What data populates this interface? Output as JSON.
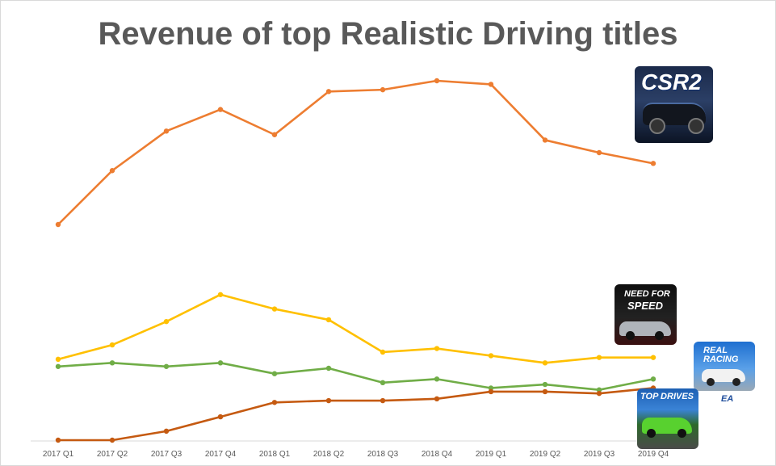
{
  "chart_data": {
    "type": "line",
    "title": "Revenue of top Realistic Driving titles",
    "categories": [
      "2017 Q1",
      "2017 Q2",
      "2017 Q3",
      "2017 Q4",
      "2018 Q1",
      "2018 Q2",
      "2018 Q3",
      "2018 Q4",
      "2019 Q1",
      "2019 Q2",
      "2019 Q3",
      "2019 Q4"
    ],
    "ylim": [
      0,
      100
    ],
    "grid": false,
    "series": [
      {
        "name": "CSR2",
        "color": "#ed7d31",
        "values": [
          60,
          75,
          86,
          92,
          85,
          97,
          97.5,
          100,
          99,
          83.5,
          80,
          77
        ]
      },
      {
        "name": "Need for Speed",
        "color": "#ffc000",
        "values": [
          22.5,
          26.5,
          33,
          40.5,
          36.5,
          33.5,
          24.5,
          25.5,
          23.5,
          21.5,
          23,
          23
        ]
      },
      {
        "name": "Real Racing",
        "color": "#70ad47",
        "values": [
          20.5,
          21.5,
          20.5,
          21.5,
          18.5,
          20,
          16,
          17,
          14.5,
          15.5,
          14,
          17
        ]
      },
      {
        "name": "Top Drives",
        "color": "#c55a11",
        "values": [
          0,
          0,
          2.5,
          6.5,
          10.5,
          11,
          11,
          11.5,
          13.5,
          13.5,
          13,
          14.5
        ]
      }
    ]
  },
  "icons": {
    "csr2": {
      "text": "CSR2",
      "name": "csr2-icon"
    },
    "nfs": {
      "text_line1": "NEED FOR",
      "text_line2": "SPEED",
      "name": "need-for-speed-icon"
    },
    "real_racing": {
      "text_line1": "REAL",
      "text_line2": "RACING",
      "name": "real-racing-icon"
    },
    "top_drives": {
      "text": "TOP DRIVES",
      "name": "top-drives-icon"
    },
    "ea": {
      "text": "EA"
    }
  }
}
